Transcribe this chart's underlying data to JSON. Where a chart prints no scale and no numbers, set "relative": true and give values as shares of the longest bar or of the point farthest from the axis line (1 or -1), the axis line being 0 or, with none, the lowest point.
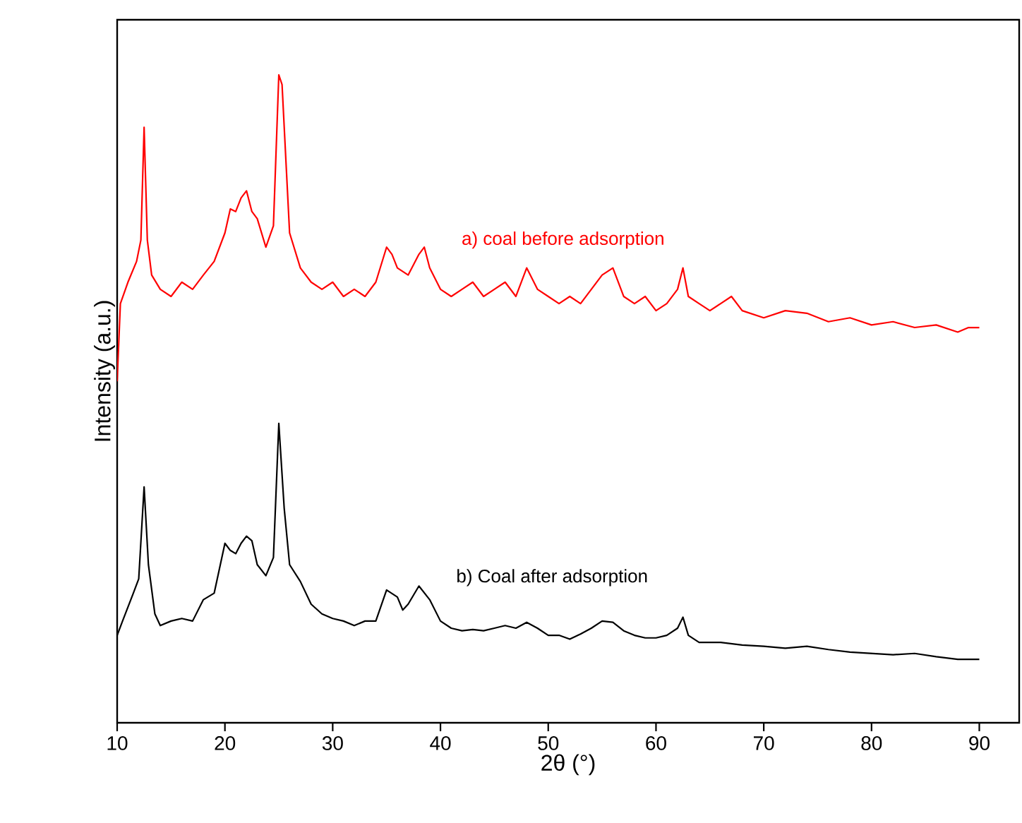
{
  "chart_data": {
    "type": "line",
    "relative": true,
    "xlabel": "2θ (°)",
    "ylabel": "Intensity (a.u.)",
    "xlim": [
      10,
      93.7
    ],
    "xticks": [
      10,
      20,
      30,
      40,
      50,
      60,
      70,
      80,
      90
    ],
    "legend": false,
    "grid": false,
    "marker": "none",
    "line_style": "solid",
    "tick_labels": "x",
    "series": [
      {
        "name": "a) coal before adsorption",
        "color": "#ff0000",
        "x": [
          10,
          10.3,
          11,
          11.8,
          12.2,
          12.5,
          12.8,
          13.2,
          14,
          15,
          16,
          17,
          18,
          19,
          20,
          20.5,
          21,
          21.5,
          22,
          22.5,
          23,
          23.8,
          24.5,
          25,
          25.3,
          25.7,
          26,
          27,
          28,
          29,
          30,
          31,
          32,
          33,
          34,
          35,
          35.5,
          36,
          37,
          38,
          38.5,
          39,
          40,
          41,
          42,
          43,
          44,
          45,
          46,
          47,
          48,
          49,
          50,
          51,
          52,
          53,
          54,
          55,
          56,
          57,
          58,
          59,
          60,
          61,
          62,
          62.5,
          63,
          64,
          65,
          66,
          67,
          68,
          70,
          72,
          74,
          76,
          78,
          80,
          82,
          84,
          86,
          88,
          89,
          90
        ],
        "values": [
          0.527,
          0.647,
          0.68,
          0.712,
          0.745,
          0.919,
          0.745,
          0.691,
          0.669,
          0.658,
          0.68,
          0.669,
          0.691,
          0.712,
          0.756,
          0.793,
          0.789,
          0.81,
          0.821,
          0.789,
          0.778,
          0.734,
          0.767,
          1,
          0.985,
          0.854,
          0.756,
          0.702,
          0.68,
          0.669,
          0.68,
          0.658,
          0.669,
          0.658,
          0.68,
          0.734,
          0.723,
          0.702,
          0.691,
          0.723,
          0.734,
          0.702,
          0.669,
          0.658,
          0.669,
          0.68,
          0.658,
          0.669,
          0.68,
          0.658,
          0.702,
          0.669,
          0.658,
          0.647,
          0.658,
          0.647,
          0.669,
          0.691,
          0.702,
          0.658,
          0.647,
          0.658,
          0.636,
          0.647,
          0.669,
          0.702,
          0.658,
          0.647,
          0.636,
          0.647,
          0.658,
          0.636,
          0.625,
          0.636,
          0.632,
          0.619,
          0.625,
          0.614,
          0.619,
          0.61,
          0.614,
          0.603,
          0.61,
          0.61
        ]
      },
      {
        "name": "b) Coal after adsorption",
        "color": "#000000",
        "x": [
          10,
          10.5,
          11.5,
          12,
          12.5,
          12.9,
          13.5,
          14,
          15,
          16,
          17,
          18,
          19,
          20,
          20.5,
          21,
          21.5,
          22,
          22.5,
          23,
          23.8,
          24.5,
          25,
          25.5,
          26,
          27,
          28,
          29,
          30,
          31,
          32,
          33,
          34,
          35,
          36,
          36.5,
          37,
          38,
          39,
          40,
          41,
          42,
          43,
          44,
          45,
          46,
          47,
          48,
          49,
          50,
          51,
          52,
          53,
          54,
          55,
          56,
          57,
          58,
          59,
          60,
          61,
          62,
          62.5,
          63,
          64,
          66,
          68,
          70,
          72,
          74,
          76,
          78,
          80,
          82,
          84,
          86,
          88,
          90
        ],
        "values": [
          0.135,
          0.157,
          0.2,
          0.222,
          0.364,
          0.244,
          0.168,
          0.15,
          0.157,
          0.161,
          0.157,
          0.19,
          0.2,
          0.277,
          0.266,
          0.261,
          0.277,
          0.288,
          0.281,
          0.244,
          0.227,
          0.255,
          0.462,
          0.331,
          0.244,
          0.218,
          0.183,
          0.168,
          0.161,
          0.157,
          0.15,
          0.157,
          0.157,
          0.205,
          0.194,
          0.174,
          0.183,
          0.211,
          0.19,
          0.157,
          0.146,
          0.142,
          0.144,
          0.142,
          0.146,
          0.15,
          0.146,
          0.155,
          0.146,
          0.135,
          0.135,
          0.129,
          0.137,
          0.146,
          0.157,
          0.155,
          0.142,
          0.135,
          0.131,
          0.131,
          0.135,
          0.146,
          0.163,
          0.135,
          0.124,
          0.124,
          0.12,
          0.118,
          0.115,
          0.118,
          0.113,
          0.109,
          0.107,
          0.105,
          0.107,
          0.102,
          0.098,
          0.098
        ]
      }
    ]
  }
}
